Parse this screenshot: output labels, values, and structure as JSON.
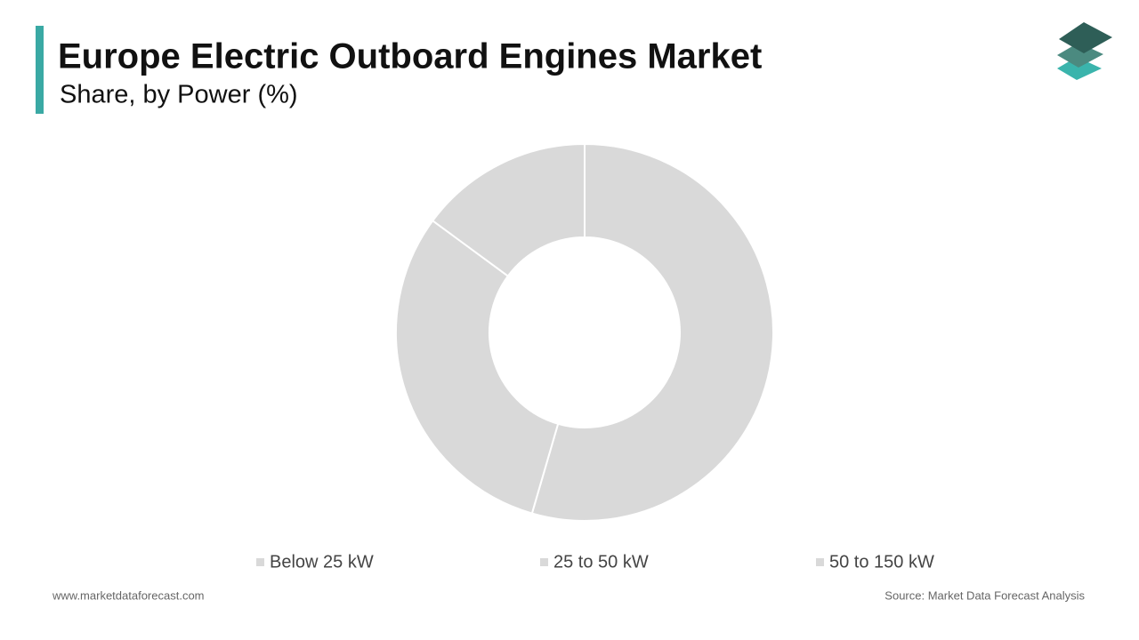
{
  "chart_data": {
    "type": "donut",
    "title": "Europe Electric Outboard Engines Market",
    "subtitle": "Share, by Power (%)",
    "categories": [
      "Below 25 kW",
      "25 to 50 kW",
      "50 to 150 kW"
    ],
    "values": [
      54.5,
      30.6,
      14.9
    ],
    "colors": [
      "#d9d9d9",
      "#d9d9d9",
      "#d9d9d9"
    ],
    "website": "www.marketdataforecast.com",
    "source": "Source: Market Data Forecast Analysis"
  }
}
